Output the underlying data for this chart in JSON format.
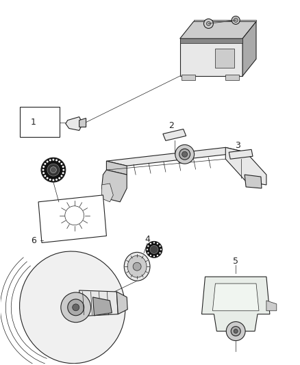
{
  "background_color": "#ffffff",
  "figure_width": 4.38,
  "figure_height": 5.33,
  "dpi": 100,
  "line_color": "#222222",
  "thin_line": 0.5,
  "mid_line": 0.8,
  "thick_line": 1.2,
  "face_white": "#ffffff",
  "face_light": "#e8e8e8",
  "face_mid": "#cccccc",
  "face_dark": "#aaaaaa",
  "face_black": "#111111"
}
